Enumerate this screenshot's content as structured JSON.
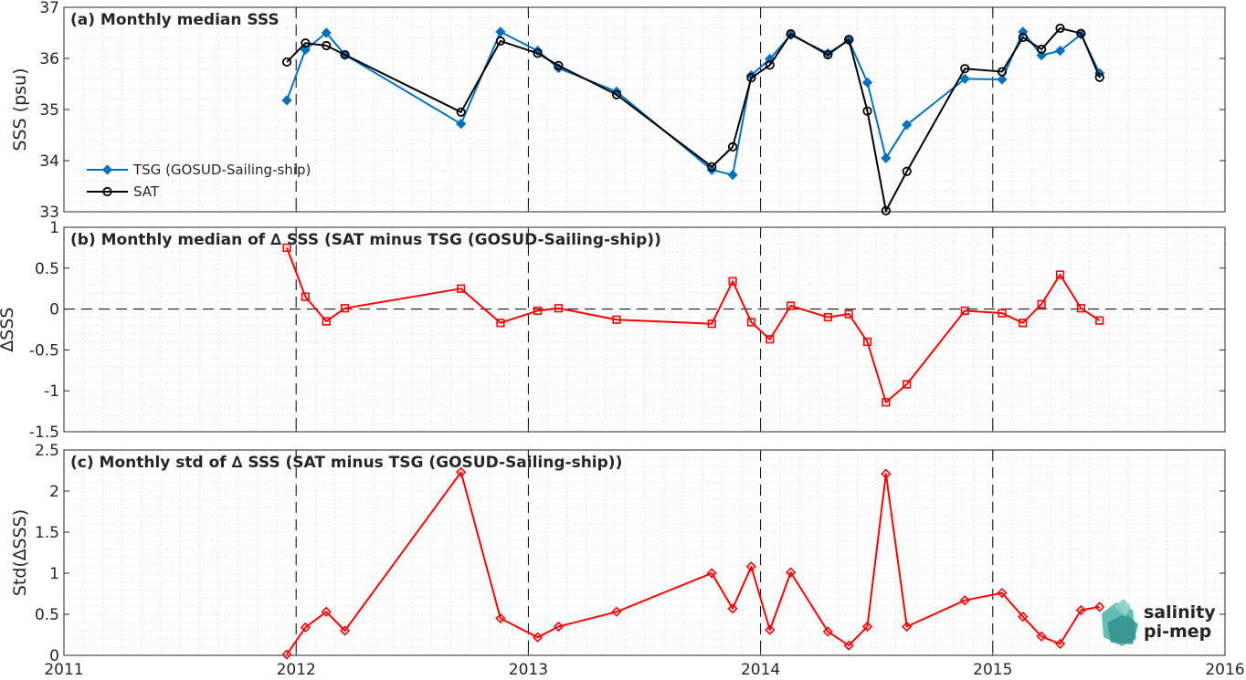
{
  "chart_data": [
    {
      "type": "line",
      "title": "(a) Monthly median SSS",
      "xlabel": "",
      "ylabel": "SSS (psu)",
      "xlim": [
        2011,
        2016
      ],
      "ylim": [
        33,
        37
      ],
      "yticks": [
        "33",
        "34",
        "35",
        "36",
        "37"
      ],
      "xticks": [
        "2011",
        "2012",
        "2013",
        "2014",
        "2015",
        "2016"
      ],
      "grid": "minor dotted, dashed year lines",
      "legend": "lower-left",
      "x": [
        2011.96,
        2012.04,
        2012.13,
        2012.21,
        2012.71,
        2012.88,
        2013.04,
        2013.13,
        2013.38,
        2013.79,
        2013.88,
        2013.96,
        2014.04,
        2014.13,
        2014.29,
        2014.38,
        2014.46,
        2014.54,
        2014.63,
        2014.88,
        2015.04,
        2015.13,
        2015.21,
        2015.29,
        2015.38,
        2015.46
      ],
      "series": [
        {
          "name": "TSG (GOSUD-Sailing-ship)",
          "color": "#0072bd",
          "marker": "diamond",
          "values": [
            35.18,
            36.17,
            36.5,
            36.07,
            34.72,
            36.52,
            36.15,
            35.81,
            35.35,
            33.82,
            33.72,
            35.67,
            35.99,
            36.46,
            36.1,
            36.35,
            35.53,
            34.05,
            34.7,
            35.6,
            35.59,
            36.52,
            36.06,
            36.15,
            36.47,
            35.71
          ]
        },
        {
          "name": "SAT",
          "color": "#000000",
          "marker": "circle",
          "values": [
            35.93,
            36.3,
            36.25,
            36.07,
            34.95,
            36.34,
            36.1,
            35.86,
            35.29,
            33.88,
            34.27,
            35.62,
            35.87,
            36.48,
            36.07,
            36.37,
            34.97,
            33.02,
            33.79,
            35.8,
            35.74,
            36.41,
            36.18,
            36.59,
            36.49,
            35.63
          ]
        }
      ]
    },
    {
      "type": "line",
      "title": "(b) Monthly median of ∆ SSS (SAT minus TSG (GOSUD-Sailing-ship))",
      "xlabel": "",
      "ylabel": "∆SSS",
      "xlim": [
        2011,
        2016
      ],
      "ylim": [
        -1.5,
        1
      ],
      "yticks": [
        "-1.5",
        "-1",
        "-0.5",
        "0",
        "0.5",
        "1"
      ],
      "reference_line": 0,
      "x": [
        2011.96,
        2012.04,
        2012.13,
        2012.21,
        2012.71,
        2012.88,
        2013.04,
        2013.13,
        2013.38,
        2013.79,
        2013.88,
        2013.96,
        2014.04,
        2014.13,
        2014.29,
        2014.38,
        2014.46,
        2014.54,
        2014.63,
        2014.88,
        2015.04,
        2015.13,
        2015.21,
        2015.29,
        2015.38,
        2015.46
      ],
      "series": [
        {
          "color": "#ff0000",
          "marker": "square",
          "values": [
            0.75,
            0.15,
            -0.15,
            0.01,
            0.25,
            -0.17,
            -0.02,
            0.01,
            -0.13,
            -0.18,
            0.34,
            -0.16,
            -0.37,
            0.04,
            -0.1,
            -0.06,
            -0.4,
            -1.14,
            -0.92,
            -0.02,
            -0.05,
            -0.17,
            0.06,
            0.42,
            0.01,
            -0.14
          ]
        }
      ]
    },
    {
      "type": "line",
      "title": "(c) Monthly std of ∆ SSS (SAT minus TSG (GOSUD-Sailing-ship))",
      "xlabel": "",
      "ylabel": "Std(∆SSS)",
      "xlim": [
        2011,
        2016
      ],
      "ylim": [
        0,
        2.5
      ],
      "yticks": [
        "0",
        "0.5",
        "1",
        "1.5",
        "2",
        "2.5"
      ],
      "x": [
        2011.96,
        2012.04,
        2012.13,
        2012.21,
        2012.71,
        2012.88,
        2013.04,
        2013.13,
        2013.38,
        2013.79,
        2013.88,
        2013.96,
        2014.04,
        2014.13,
        2014.29,
        2014.38,
        2014.46,
        2014.54,
        2014.63,
        2014.88,
        2015.04,
        2015.13,
        2015.21,
        2015.29,
        2015.38,
        2015.46
      ],
      "series": [
        {
          "color": "#ff0000",
          "marker": "diamond",
          "values": [
            0.01,
            0.34,
            0.53,
            0.3,
            2.23,
            0.45,
            0.22,
            0.35,
            0.53,
            1.0,
            0.57,
            1.08,
            0.31,
            1.01,
            0.29,
            0.12,
            0.35,
            2.21,
            0.35,
            0.67,
            0.76,
            0.47,
            0.23,
            0.14,
            0.55,
            0.59
          ]
        }
      ]
    }
  ],
  "logo": {
    "line1": "salinity",
    "line2": "pi-mep",
    "color": "#1a8c8c"
  }
}
